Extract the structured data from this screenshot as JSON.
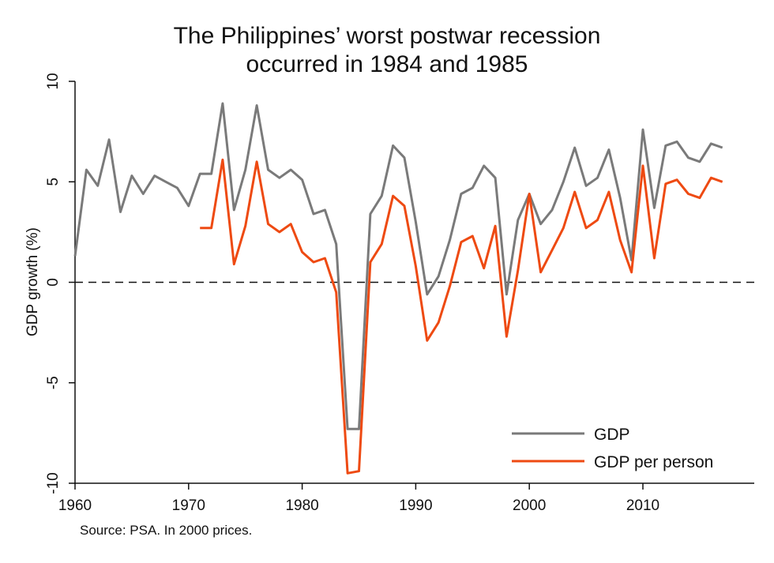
{
  "chart_data": {
    "type": "line",
    "title_lines": [
      "The Philippines’ worst postwar recession",
      "occurred in 1984 and 1985"
    ],
    "xlabel": "",
    "ylabel": "GDP growth (%)",
    "xlim": [
      1960,
      2018
    ],
    "ylim": [
      -10,
      10
    ],
    "x_ticks": [
      1960,
      1970,
      1980,
      1990,
      2000,
      2010
    ],
    "y_ticks": [
      10,
      5,
      0,
      -5,
      -10
    ],
    "reference_line": {
      "y": 0,
      "style": "dashed"
    },
    "legend_position": "bottom-right",
    "note": "Source: PSA. In 2000 prices.",
    "series": [
      {
        "name": "GDP",
        "color": "#7a7a7a",
        "points": [
          [
            1960,
            1.3
          ],
          [
            1961,
            5.6
          ],
          [
            1962,
            4.8
          ],
          [
            1963,
            7.1
          ],
          [
            1964,
            3.5
          ],
          [
            1965,
            5.3
          ],
          [
            1966,
            4.4
          ],
          [
            1967,
            5.3
          ],
          [
            1968,
            5.0
          ],
          [
            1969,
            4.7
          ],
          [
            1970,
            3.8
          ],
          [
            1971,
            5.4
          ],
          [
            1972,
            5.4
          ],
          [
            1973,
            8.9
          ],
          [
            1974,
            3.6
          ],
          [
            1975,
            5.6
          ],
          [
            1976,
            8.8
          ],
          [
            1977,
            5.6
          ],
          [
            1978,
            5.2
          ],
          [
            1979,
            5.6
          ],
          [
            1980,
            5.1
          ],
          [
            1981,
            3.4
          ],
          [
            1982,
            3.6
          ],
          [
            1983,
            1.9
          ],
          [
            1984,
            -7.3
          ],
          [
            1985,
            -7.3
          ],
          [
            1986,
            3.4
          ],
          [
            1987,
            4.3
          ],
          [
            1988,
            6.8
          ],
          [
            1989,
            6.2
          ],
          [
            1990,
            3.0
          ],
          [
            1991,
            -0.6
          ],
          [
            1992,
            0.3
          ],
          [
            1993,
            2.1
          ],
          [
            1994,
            4.4
          ],
          [
            1995,
            4.7
          ],
          [
            1996,
            5.8
          ],
          [
            1997,
            5.2
          ],
          [
            1998,
            -0.6
          ],
          [
            1999,
            3.1
          ],
          [
            2000,
            4.4
          ],
          [
            2001,
            2.9
          ],
          [
            2002,
            3.6
          ],
          [
            2003,
            5.0
          ],
          [
            2004,
            6.7
          ],
          [
            2005,
            4.8
          ],
          [
            2006,
            5.2
          ],
          [
            2007,
            6.6
          ],
          [
            2008,
            4.2
          ],
          [
            2009,
            1.1
          ],
          [
            2010,
            7.6
          ],
          [
            2011,
            3.7
          ],
          [
            2012,
            6.8
          ],
          [
            2013,
            7.0
          ],
          [
            2014,
            6.2
          ],
          [
            2015,
            6.0
          ],
          [
            2016,
            6.9
          ],
          [
            2017,
            6.7
          ]
        ]
      },
      {
        "name": "GDP per person",
        "color": "#ee4a12",
        "points": [
          [
            1971,
            2.7
          ],
          [
            1972,
            2.7
          ],
          [
            1973,
            6.1
          ],
          [
            1974,
            0.9
          ],
          [
            1975,
            2.8
          ],
          [
            1976,
            6.0
          ],
          [
            1977,
            2.9
          ],
          [
            1978,
            2.5
          ],
          [
            1979,
            2.9
          ],
          [
            1980,
            1.5
          ],
          [
            1981,
            1.0
          ],
          [
            1982,
            1.2
          ],
          [
            1983,
            -0.5
          ],
          [
            1984,
            -9.5
          ],
          [
            1985,
            -9.4
          ],
          [
            1986,
            1.0
          ],
          [
            1987,
            1.9
          ],
          [
            1988,
            4.3
          ],
          [
            1989,
            3.8
          ],
          [
            1990,
            0.8
          ],
          [
            1991,
            -2.9
          ],
          [
            1992,
            -2.0
          ],
          [
            1993,
            -0.2
          ],
          [
            1994,
            2.0
          ],
          [
            1995,
            2.3
          ],
          [
            1996,
            0.7
          ],
          [
            1997,
            2.8
          ],
          [
            1998,
            -2.7
          ],
          [
            1999,
            0.6
          ],
          [
            2000,
            4.4
          ],
          [
            2001,
            0.5
          ],
          [
            2002,
            1.6
          ],
          [
            2003,
            2.7
          ],
          [
            2004,
            4.5
          ],
          [
            2005,
            2.7
          ],
          [
            2006,
            3.1
          ],
          [
            2007,
            4.5
          ],
          [
            2008,
            2.1
          ],
          [
            2009,
            0.5
          ],
          [
            2010,
            5.8
          ],
          [
            2011,
            1.2
          ],
          [
            2012,
            4.9
          ],
          [
            2013,
            5.1
          ],
          [
            2014,
            4.4
          ],
          [
            2015,
            4.2
          ],
          [
            2016,
            5.2
          ],
          [
            2017,
            5.0
          ]
        ]
      }
    ]
  }
}
